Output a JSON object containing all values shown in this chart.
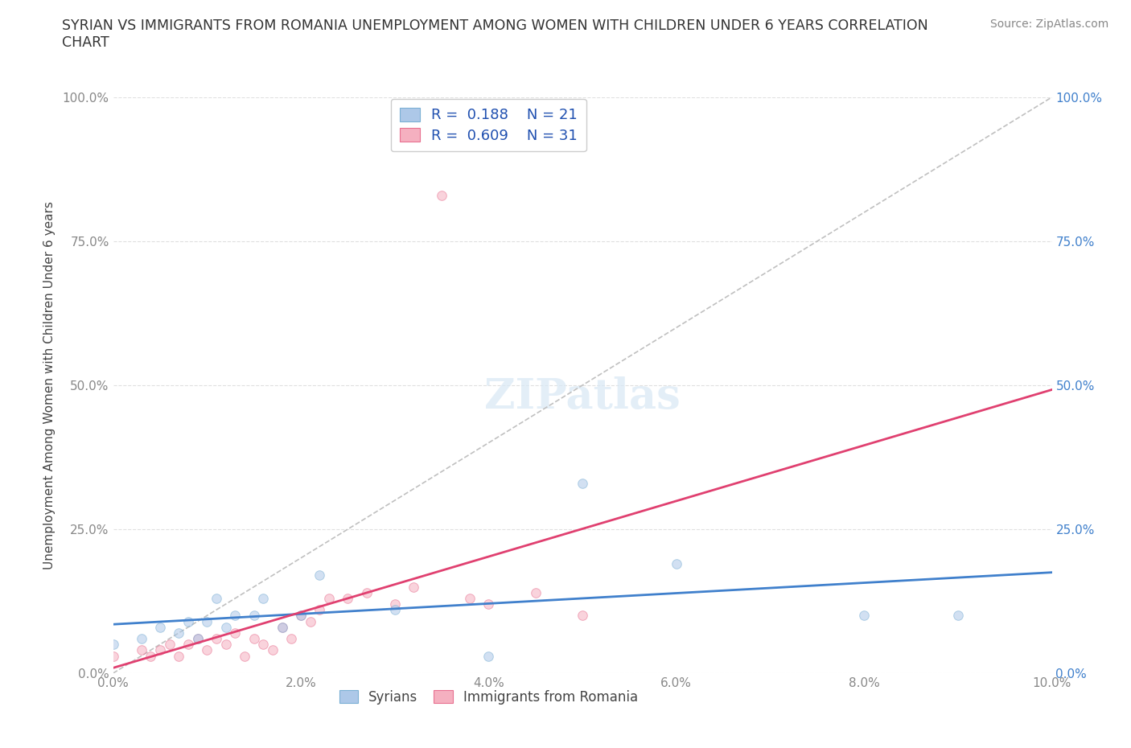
{
  "title": "SYRIAN VS IMMIGRANTS FROM ROMANIA UNEMPLOYMENT AMONG WOMEN WITH CHILDREN UNDER 6 YEARS CORRELATION\nCHART",
  "source": "Source: ZipAtlas.com",
  "ylabel": "Unemployment Among Women with Children Under 6 years",
  "xlim": [
    0.0,
    0.1
  ],
  "ylim": [
    0.0,
    1.0
  ],
  "xticks": [
    0.0,
    0.02,
    0.04,
    0.06,
    0.08,
    0.1
  ],
  "yticks": [
    0.0,
    0.25,
    0.5,
    0.75,
    1.0
  ],
  "xticklabels": [
    "0.0%",
    "2.0%",
    "4.0%",
    "6.0%",
    "8.0%",
    "10.0%"
  ],
  "yticklabels_left": [
    "0.0%",
    "25.0%",
    "50.0%",
    "75.0%",
    "100.0%"
  ],
  "yticklabels_right": [
    "0.0%",
    "25.0%",
    "50.0%",
    "75.0%",
    "100.0%"
  ],
  "syrians_x": [
    0.0,
    0.003,
    0.005,
    0.007,
    0.008,
    0.009,
    0.01,
    0.011,
    0.012,
    0.013,
    0.015,
    0.016,
    0.018,
    0.02,
    0.022,
    0.03,
    0.04,
    0.05,
    0.06,
    0.08,
    0.09
  ],
  "syrians_y": [
    0.05,
    0.06,
    0.08,
    0.07,
    0.09,
    0.06,
    0.09,
    0.13,
    0.08,
    0.1,
    0.1,
    0.13,
    0.08,
    0.1,
    0.17,
    0.11,
    0.03,
    0.33,
    0.19,
    0.1,
    0.1
  ],
  "romania_x": [
    0.0,
    0.003,
    0.004,
    0.005,
    0.006,
    0.007,
    0.008,
    0.009,
    0.01,
    0.011,
    0.012,
    0.013,
    0.014,
    0.015,
    0.016,
    0.017,
    0.018,
    0.019,
    0.02,
    0.021,
    0.022,
    0.023,
    0.025,
    0.027,
    0.03,
    0.032,
    0.035,
    0.038,
    0.04,
    0.045,
    0.05
  ],
  "romania_y": [
    0.03,
    0.04,
    0.03,
    0.04,
    0.05,
    0.03,
    0.05,
    0.06,
    0.04,
    0.06,
    0.05,
    0.07,
    0.03,
    0.06,
    0.05,
    0.04,
    0.08,
    0.06,
    0.1,
    0.09,
    0.11,
    0.13,
    0.13,
    0.14,
    0.12,
    0.15,
    0.83,
    0.13,
    0.12,
    0.14,
    0.1
  ],
  "syrians_color": "#adc8e8",
  "romania_color": "#f5b0c0",
  "syrians_edge": "#7aafd4",
  "romania_edge": "#e87090",
  "syrians_label": "Syrians",
  "romania_label": "Immigrants from Romania",
  "r_syrians": 0.188,
  "n_syrians": 21,
  "r_romania": 0.609,
  "n_romania": 31,
  "trend_syrians_color": "#4080cc",
  "trend_romania_color": "#e04070",
  "diagonal_color": "#c0c0c0",
  "grid_color": "#e0e0e0",
  "title_color": "#333333",
  "source_color": "#888888",
  "axis_label_color": "#444444",
  "tick_color_left": "#888888",
  "tick_color_right": "#4080cc",
  "legend_r_color": "#2050b0",
  "marker_size": 70,
  "alpha": 0.55
}
